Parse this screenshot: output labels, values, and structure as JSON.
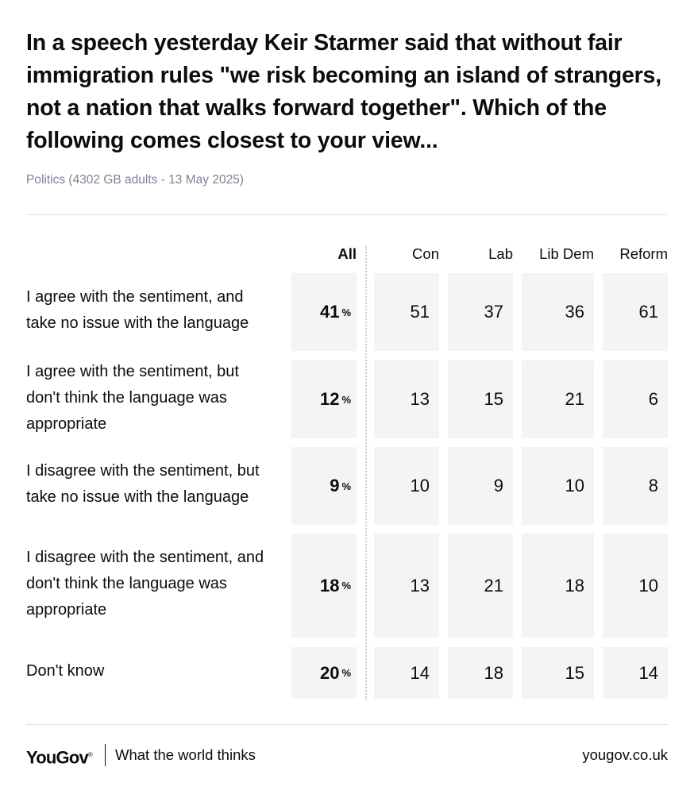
{
  "title": "In a speech yesterday Keir Starmer said that without fair immigration rules \"we risk becoming an island of strangers, not a nation that walks forward together\". Which of the following comes closest to your view...",
  "subtitle": "Politics (4302 GB adults - 13 May 2025)",
  "chart_data": {
    "type": "table",
    "title": "In a speech yesterday Keir Starmer said that without fair immigration rules \"we risk becoming an island of strangers, not a nation that walks forward together\". Which of the following comes closest to your view...",
    "columns": [
      "All",
      "Con",
      "Lab",
      "Lib Dem",
      "Reform"
    ],
    "unit_symbol": "%",
    "rows": [
      {
        "label": "I agree with the sentiment, and take no issue with the language",
        "values": [
          41,
          51,
          37,
          36,
          61
        ]
      },
      {
        "label": "I agree with the sentiment, but don't think the language was appropriate",
        "values": [
          12,
          13,
          15,
          21,
          6
        ]
      },
      {
        "label": "I disagree with the sentiment, but take no issue with the language",
        "values": [
          9,
          10,
          9,
          10,
          8
        ]
      },
      {
        "label": "I disagree with the sentiment, and don't think the language was appropriate",
        "values": [
          18,
          13,
          21,
          18,
          10
        ]
      },
      {
        "label": "Don't know",
        "values": [
          20,
          14,
          18,
          15,
          14
        ]
      }
    ]
  },
  "footer": {
    "logo": "YouGov",
    "tagline": "What the world thinks",
    "site": "yougov.co.uk"
  }
}
